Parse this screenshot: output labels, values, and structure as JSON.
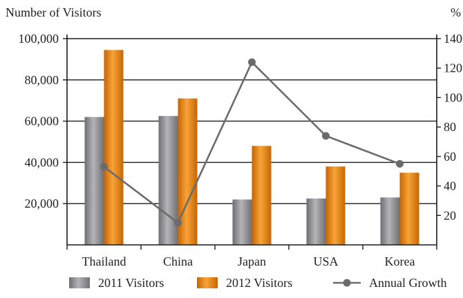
{
  "chart_data": {
    "type": "bar",
    "categories": [
      "Thailand",
      "China",
      "Japan",
      "USA",
      "Korea"
    ],
    "y_left": {
      "label": "Number of Visitors",
      "range": [
        0,
        100000
      ],
      "ticks": [
        20000,
        40000,
        60000,
        80000,
        100000
      ],
      "tick_labels": [
        "20,000",
        "40,000",
        "60,000",
        "80,000",
        "100,000"
      ]
    },
    "y_right": {
      "label": "%",
      "range": [
        0,
        140
      ],
      "ticks": [
        20,
        40,
        60,
        80,
        100,
        120,
        140
      ],
      "tick_labels": [
        "20",
        "40",
        "60",
        "80",
        "100",
        "120",
        "140"
      ]
    },
    "series": [
      {
        "name": "2011 Visitors",
        "type": "bar",
        "axis": "left",
        "color": "#8a8a8f",
        "values": [
          62000,
          62500,
          22000,
          22500,
          23000
        ]
      },
      {
        "name": "2012 Visitors",
        "type": "bar",
        "axis": "left",
        "color": "#e07c10",
        "values": [
          94500,
          71000,
          48000,
          38000,
          35000
        ]
      },
      {
        "name": "Annual Growth",
        "type": "line",
        "axis": "right",
        "color": "#6b6b6b",
        "values": [
          53,
          15,
          124,
          74,
          55
        ]
      }
    ],
    "grid": "horizontal",
    "legend_position": "bottom"
  }
}
